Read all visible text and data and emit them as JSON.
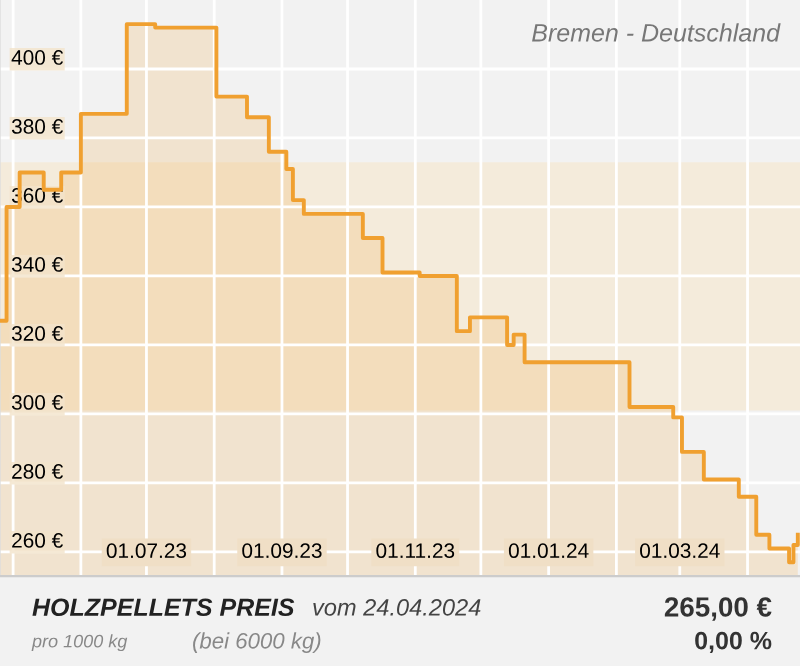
{
  "chart_data": {
    "type": "step",
    "title": "HOLZPELLETS PREIS",
    "subtitle": "Bremen - Deutschland",
    "annotations": [
      "vom 24.04.2024",
      "pro 1000 kg",
      "(bei 6000 kg)",
      "265,00 €",
      "0,00 %"
    ],
    "series": [
      {
        "color": "#f0a030",
        "x": [
          "2023-04-25",
          "2023-04-28",
          "2023-05-04",
          "2023-05-15",
          "2023-05-23",
          "2023-06-01",
          "2023-06-22",
          "2023-07-05",
          "2023-08-02",
          "2023-08-16",
          "2023-08-26",
          "2023-09-03",
          "2023-09-06",
          "2023-09-11",
          "2023-10-08",
          "2023-10-17",
          "2023-11-03",
          "2023-11-20",
          "2023-11-26",
          "2023-12-13",
          "2023-12-16",
          "2023-12-21",
          "2024-02-07",
          "2024-02-27",
          "2024-03-02",
          "2024-03-12",
          "2024-03-28",
          "2024-04-05",
          "2024-04-11",
          "2024-04-20",
          "2024-04-22",
          "2024-04-24"
        ],
        "values": [
          327,
          360,
          370,
          365,
          370,
          387,
          413,
          412,
          392,
          386,
          376,
          371,
          362,
          358,
          351,
          341,
          340,
          324,
          328,
          320,
          323,
          315,
          302,
          299,
          289,
          281,
          276,
          265,
          261,
          257,
          262,
          265
        ]
      }
    ],
    "bands": [
      {
        "axis": "y",
        "from": 301,
        "to": 373,
        "color": "#f5e6cc"
      }
    ],
    "xlim": [
      "2023-04-25",
      "2024-04-25"
    ],
    "xticks": [
      {
        "value": "2023-05-01",
        "label": null
      },
      {
        "value": "2023-06-01",
        "label": null
      },
      {
        "value": "2023-07-01",
        "label": "01.07.23"
      },
      {
        "value": "2023-08-01",
        "label": null
      },
      {
        "value": "2023-09-01",
        "label": "01.09.23"
      },
      {
        "value": "2023-10-01",
        "label": null
      },
      {
        "value": "2023-11-01",
        "label": "01.11.23"
      },
      {
        "value": "2023-12-01",
        "label": null
      },
      {
        "value": "2024-01-01",
        "label": "01.01.24"
      },
      {
        "value": "2024-02-01",
        "label": null
      },
      {
        "value": "2024-03-01",
        "label": "01.03.24"
      },
      {
        "value": "2024-04-01",
        "label": null
      }
    ],
    "ylim": [
      253,
      420
    ],
    "yticks": [
      {
        "value": 260,
        "label": "260 €"
      },
      {
        "value": 280,
        "label": "280 €"
      },
      {
        "value": 300,
        "label": "300 €"
      },
      {
        "value": 320,
        "label": "320 €"
      },
      {
        "value": 340,
        "label": "340 €"
      },
      {
        "value": 360,
        "label": "360 €"
      },
      {
        "value": 380,
        "label": "380 €"
      },
      {
        "value": 400,
        "label": "400 €"
      }
    ],
    "grid": true,
    "legend": false
  }
}
